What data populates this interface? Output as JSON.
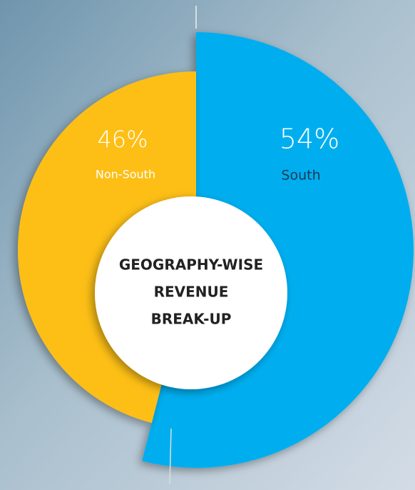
{
  "chart_data": {
    "type": "pie",
    "title": [
      "GEOGRAPHY-WISE",
      "REVENUE",
      "BREAK-UP"
    ],
    "categories": [
      "South",
      "Non-South"
    ],
    "values": [
      54,
      46
    ],
    "value_labels": [
      "54%",
      "46%"
    ],
    "colors": [
      "#00aeef",
      "#fdbf12"
    ]
  }
}
